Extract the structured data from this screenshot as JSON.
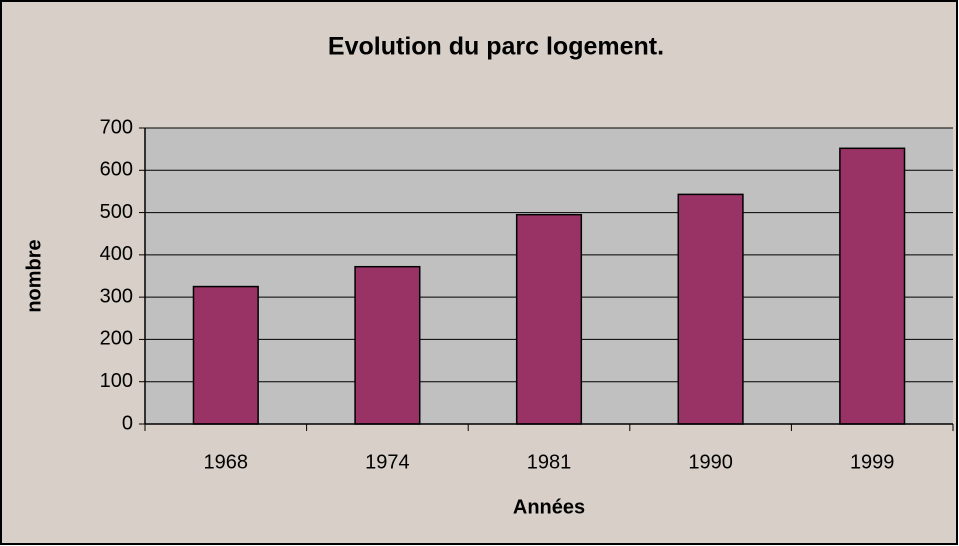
{
  "chart_data": {
    "type": "bar",
    "title": "Evolution du parc logement.",
    "x_label": "Années",
    "y_label": "nombre",
    "categories": [
      "1968",
      "1974",
      "1981",
      "1990",
      "1999"
    ],
    "values": [
      325,
      372,
      495,
      543,
      652
    ],
    "color": "#993366",
    "ylim": [
      0,
      700
    ],
    "yticks": [
      0,
      100,
      200,
      300,
      400,
      500,
      600,
      700
    ],
    "grid": true
  }
}
